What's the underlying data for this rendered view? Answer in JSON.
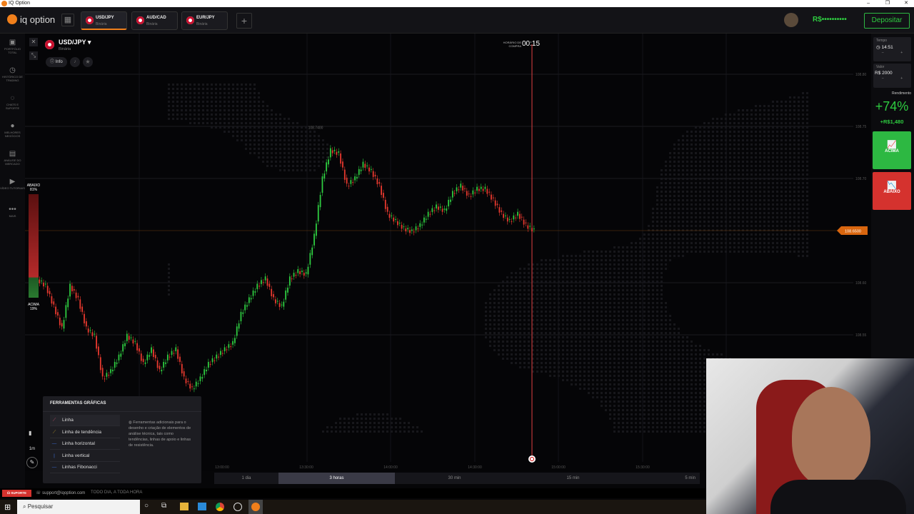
{
  "window": {
    "title": "IQ Option",
    "controls": [
      "–",
      "❐",
      "✕"
    ]
  },
  "header": {
    "logo": "iq option",
    "tabs": [
      {
        "pair": "USD/JPY",
        "type": "Binária",
        "active": true
      },
      {
        "pair": "AUD/CAD",
        "type": "Binária",
        "active": false
      },
      {
        "pair": "EUR/JPY",
        "type": "Binária",
        "active": false
      }
    ],
    "add_tab": "+",
    "balance": "R$••••••••••",
    "deposit": "Depositar"
  },
  "sidebar": {
    "items": [
      {
        "icon": "briefcase-icon",
        "glyph": "▣",
        "label": "PORTFÓLIO TOTAL"
      },
      {
        "icon": "clock-icon",
        "glyph": "◷",
        "label": "HISTÓRICO DE TRADING"
      },
      {
        "icon": "chat-icon",
        "glyph": "◌",
        "label": "CHATS E SUPORTE"
      },
      {
        "icon": "medal-icon",
        "glyph": "●",
        "label": "MELHORES NEGÓCIOS"
      },
      {
        "icon": "news-icon",
        "glyph": "▤",
        "label": "ANÁLISE DO MERCADO"
      },
      {
        "icon": "play-icon",
        "glyph": "▶",
        "label": "VÍDEO TUTORIAIS"
      },
      {
        "icon": "more-icon",
        "glyph": "•••",
        "label": "MAIS"
      }
    ]
  },
  "asset": {
    "pair": "USD/JPY",
    "type": "Binária",
    "info": "Info"
  },
  "sentiment": {
    "down_label": "ABAIXO",
    "down_pct": "81%",
    "up_label": "ACIMA",
    "up_pct": "19%",
    "down_fraction": 0.81
  },
  "purchase": {
    "label": "HORÁRIO DE COMPRA",
    "countdown": "00:15"
  },
  "right_panel": {
    "time_label": "Tempo",
    "time": "14:51",
    "amount_label": "Valor",
    "amount": "R$ 2000",
    "minus": "–",
    "plus": "+",
    "yield_label": "Rendimento",
    "yield": "+74%",
    "profit": "+R$1,480",
    "up": "ACIMA",
    "down": "ABAIXO"
  },
  "chart_data": {
    "type": "candlestick",
    "y_ticks": [
      "108.80",
      "108.75",
      "108.70",
      "108.60",
      "108.55"
    ],
    "y_values": [
      108.8,
      108.75,
      108.7,
      108.6,
      108.55
    ],
    "current_price": "108.6500",
    "max_label": "108.7400",
    "x_ticks": [
      "13:00:00",
      "13:30:00",
      "14:00:00",
      "14:30:00",
      "15:00:00",
      "15:30:00"
    ],
    "up_color": "#2ecc40",
    "down_color": "#e8392f",
    "closes": [
      108.597,
      108.577,
      108.556,
      108.597,
      108.584,
      108.556,
      108.549,
      108.508,
      108.515,
      108.529,
      108.549,
      108.542,
      108.522,
      108.536,
      108.515,
      108.529,
      108.536,
      108.508,
      108.498,
      108.508,
      108.522,
      108.529,
      108.536,
      108.542,
      108.57,
      108.584,
      108.597,
      108.604,
      108.584,
      108.577,
      108.604,
      108.611,
      108.608,
      108.645,
      108.7,
      108.727,
      108.724,
      108.693,
      108.7,
      108.714,
      108.707,
      108.693,
      108.666,
      108.659,
      108.652,
      108.649,
      108.655,
      108.666,
      108.673,
      108.669,
      108.686,
      108.693,
      108.683,
      108.69,
      108.69,
      108.679,
      108.666,
      108.659,
      108.666,
      108.655,
      108.65
    ]
  },
  "timeframes": [
    {
      "label": "1 dia"
    },
    {
      "label": "3 horas",
      "active": true
    },
    {
      "label": "30 min"
    },
    {
      "label": "15 min"
    },
    {
      "label": "5 min"
    }
  ],
  "chart_controls": {
    "candle": "▮",
    "interval": "1m",
    "draw": "✎",
    "indicator": "∿"
  },
  "tools": {
    "title": "FERRAMENTAS GRÁFICAS",
    "items": [
      {
        "label": "Linha",
        "color": "#c0506a"
      },
      {
        "label": "Linha de tendência",
        "color": "#b0902a"
      },
      {
        "label": "Linha horizontal",
        "color": "#3a6fd8"
      },
      {
        "label": "Linha vertical",
        "color": "#3a6fd8"
      },
      {
        "label": "Linhas Fibonacci",
        "color": "#3a6fd8"
      }
    ],
    "description": "Ferramentas adicionais para o desenho e criação de elementos de análise técnica, tais como tendências, linhas de apoio e linhas de resistência."
  },
  "support": {
    "button": "SUPORTE",
    "email": "support@iqoption.com",
    "hours": "TODO DIA, A TODA HORA"
  },
  "taskbar": {
    "search": "Pesquisar"
  }
}
